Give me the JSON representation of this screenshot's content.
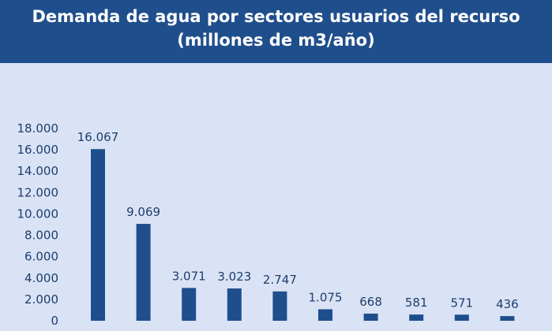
{
  "header": {
    "title_line1": "Demanda de agua por sectores usuarios del recurso",
    "title_line2": "(millones de m3/año)"
  },
  "colors": {
    "header_bg": "#1f4e8c",
    "bar": "#1f4e8c",
    "background": "#d9e3f5"
  },
  "chart_data": {
    "type": "bar",
    "title": "Demanda de agua por sectores usuarios del recurso (millones de m3/año)",
    "categories": [
      "",
      "",
      "",
      "",
      "",
      "",
      "",
      "",
      "",
      ""
    ],
    "values": [
      16067,
      9069,
      3071,
      3023,
      2747,
      1075,
      668,
      581,
      571,
      436
    ],
    "value_labels": [
      "16.067",
      "9.069",
      "3.071",
      "3.023",
      "2.747",
      "1.075",
      "668",
      "581",
      "571",
      "436"
    ],
    "yticks": [
      0,
      2000,
      4000,
      6000,
      8000,
      10000,
      12000,
      14000,
      16000,
      18000
    ],
    "ytick_labels": [
      "0",
      "2.000",
      "4.000",
      "6.000",
      "8.000",
      "10.000",
      "12.000",
      "14.000",
      "16.000",
      "18.000"
    ],
    "ylim": [
      0,
      18000
    ],
    "grid": false,
    "legend": "none"
  }
}
